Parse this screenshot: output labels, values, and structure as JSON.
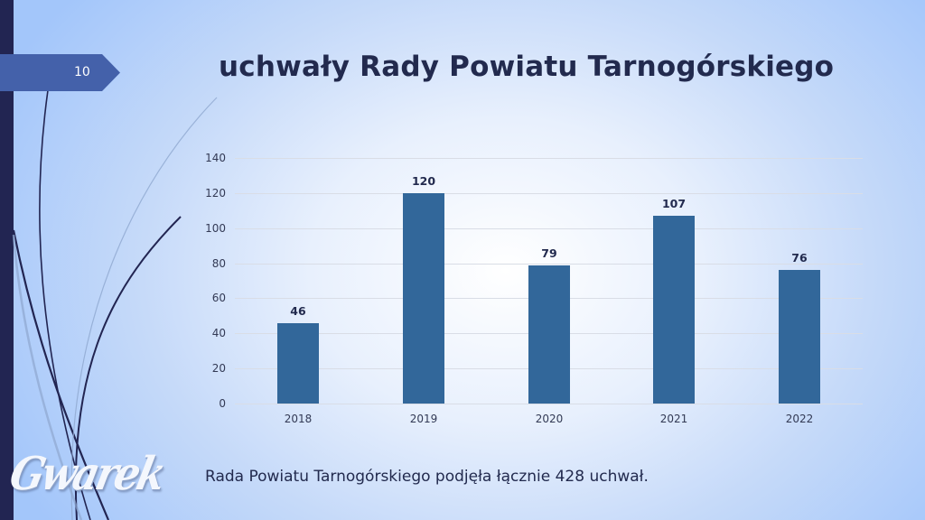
{
  "slide": {
    "number": "10",
    "title": "uchwały Rady Powiatu Tarnogórskiego",
    "footer_text": "Rada Powiatu Tarnogórskiego podjęła łącznie 428 uchwał.",
    "logo_text": "Gwarek"
  },
  "colors": {
    "bar": "#32679a",
    "title": "#222a4e",
    "accent_tab": "#4461aa",
    "left_bar": "#222552"
  },
  "chart_data": {
    "type": "bar",
    "title": "uchwały Rady Powiatu Tarnogórskiego",
    "categories": [
      "2018",
      "2019",
      "2020",
      "2021",
      "2022"
    ],
    "values": [
      46,
      120,
      79,
      107,
      76
    ],
    "xlabel": "",
    "ylabel": "",
    "ylim": [
      0,
      140
    ],
    "yticks": [
      "0",
      "20",
      "40",
      "60",
      "80",
      "100",
      "120",
      "140"
    ],
    "data_labels": [
      "46",
      "120",
      "79",
      "107",
      "76"
    ],
    "grid": true,
    "legend": null
  }
}
